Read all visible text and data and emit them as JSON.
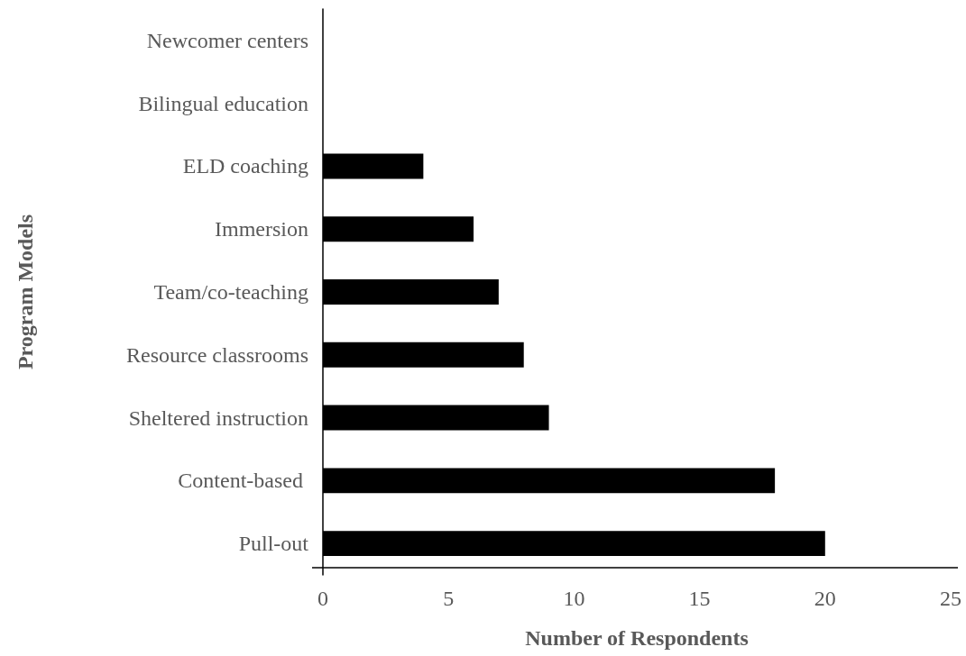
{
  "chart_data": {
    "type": "bar",
    "orientation": "horizontal",
    "xlabel": "Number of Respondents",
    "ylabel": "Program Models",
    "categories": [
      "Newcomer centers",
      "Bilingual education",
      "ELD coaching",
      "Immersion",
      "Team/co-teaching",
      "Resource classrooms",
      "Sheltered instruction",
      "Content-based ",
      "Pull-out"
    ],
    "values": [
      0,
      0,
      4,
      6,
      7,
      8,
      9,
      18,
      20
    ],
    "color": "#000000",
    "xlim": [
      0,
      25
    ],
    "xticks": [
      0,
      5,
      10,
      15,
      20,
      25
    ],
    "grid": false
  }
}
